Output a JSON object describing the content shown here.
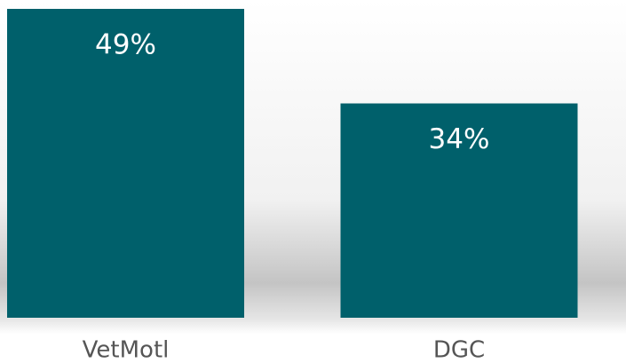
{
  "chart_data": {
    "type": "bar",
    "categories": [
      "VetMotl",
      "DGC"
    ],
    "values": [
      49,
      34
    ],
    "value_labels": [
      "49%",
      "34%"
    ],
    "color": "#00606b"
  }
}
